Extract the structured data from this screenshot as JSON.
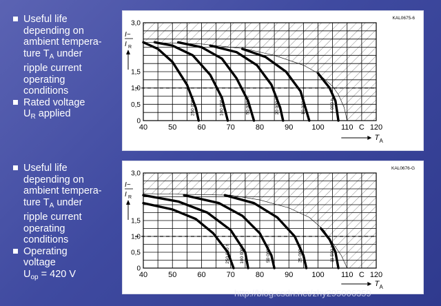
{
  "bullets_top": [
    {
      "lines": [
        "Useful life",
        "depending on",
        "ambient tempera-",
        "ture T",
        "under",
        "ripple current",
        "operating",
        "conditions"
      ]
    },
    {
      "lines": [
        "Rated voltage",
        "U",
        "applied"
      ]
    }
  ],
  "bullets_bottom": [
    {
      "lines": [
        "Useful life",
        "depending on",
        "ambient tempera-",
        "ture T",
        "under",
        "ripple current",
        "operating",
        "conditions"
      ]
    },
    {
      "lines": [
        "Operating",
        "voltage",
        "U",
        "= 420 V"
      ]
    }
  ],
  "subscripts": {
    "A": "A",
    "R": "R",
    "op": "op"
  },
  "watermark": "http://blog.csdn.net/zhy295006359",
  "colors": {
    "background": "#3f4aa0",
    "panel": "#ffffff",
    "curve": "#000000",
    "grid": "#000000"
  },
  "chart_data": [
    {
      "type": "line",
      "code": "KAL0675-6",
      "ylabel_top": "I~",
      "ylabel_bottom": "I",
      "ylabel_sub": "R",
      "xlabel": "T",
      "xlabel_sub": "A",
      "x_unit": "C",
      "xlim": [
        40,
        120
      ],
      "ylim": [
        0,
        3.0
      ],
      "x_ticks": [
        "40",
        "50",
        "60",
        "70",
        "80",
        "90",
        "100",
        "110",
        "",
        "120"
      ],
      "y_ticks": [
        {
          "v": 0,
          "label": "0"
        },
        {
          "v": 0.5,
          "label": "0,5"
        },
        {
          "v": 1.0,
          "label": "1,0"
        },
        {
          "v": 1.5,
          "label": "1,5"
        },
        {
          "v": 3.0,
          "label": "3,0"
        }
      ],
      "grid": true,
      "dashed_y": 1.0,
      "boundary": [
        [
          40,
          2.4
        ],
        [
          60,
          2.35
        ],
        [
          75,
          2.2
        ],
        [
          85,
          2.0
        ],
        [
          95,
          1.7
        ],
        [
          100,
          1.45
        ],
        [
          105,
          1.05
        ],
        [
          107,
          0.8
        ],
        [
          109,
          0.4
        ],
        [
          110,
          0
        ]
      ],
      "series": [
        {
          "name": "250 000 h",
          "points": [
            [
              40,
              2.4
            ],
            [
              45,
              2.2
            ],
            [
              50,
              1.8
            ],
            [
              55,
              1.1
            ],
            [
              58,
              0.4
            ],
            [
              59,
              0
            ]
          ]
        },
        {
          "name": "100 000 h",
          "points": [
            [
              44,
              2.4
            ],
            [
              50,
              2.3
            ],
            [
              57,
              2.0
            ],
            [
              63,
              1.4
            ],
            [
              67,
              0.7
            ],
            [
              69,
              0
            ]
          ]
        },
        {
          "name": "50 000 h",
          "points": [
            [
              52,
              2.4
            ],
            [
              60,
              2.25
            ],
            [
              67,
              1.9
            ],
            [
              72,
              1.3
            ],
            [
              76,
              0.6
            ],
            [
              78,
              0
            ]
          ]
        },
        {
          "name": "20 000 h",
          "points": [
            [
              63,
              2.3
            ],
            [
              72,
              2.1
            ],
            [
              79,
              1.7
            ],
            [
              84,
              1.1
            ],
            [
              87,
              0.4
            ],
            [
              88,
              0
            ]
          ]
        },
        {
          "name": "10 000 h",
          "points": [
            [
              74,
              2.2
            ],
            [
              82,
              1.95
            ],
            [
              89,
              1.5
            ],
            [
              94,
              0.9
            ],
            [
              96,
              0.3
            ],
            [
              97,
              0
            ]
          ]
        },
        {
          "name": "4 000 h",
          "points": [
            [
              100,
              1.45
            ],
            [
              104,
              1.0
            ],
            [
              106,
              0.6
            ],
            [
              107,
              0
            ]
          ]
        }
      ]
    },
    {
      "type": "line",
      "code": "KAL0676-G",
      "ylabel_top": "I~",
      "ylabel_bottom": "I",
      "ylabel_sub": "R",
      "xlabel": "T",
      "xlabel_sub": "A",
      "x_unit": "C",
      "xlim": [
        40,
        120
      ],
      "ylim": [
        0,
        3.0
      ],
      "x_ticks": [
        "40",
        "50",
        "60",
        "70",
        "80",
        "90",
        "100",
        "110",
        "",
        "120"
      ],
      "y_ticks": [
        {
          "v": 0,
          "label": "0"
        },
        {
          "v": 0.5,
          "label": "0,5"
        },
        {
          "v": 1.0,
          "label": "1,0"
        },
        {
          "v": 1.5,
          "label": "1,5"
        },
        {
          "v": 3.0,
          "label": "3,0"
        }
      ],
      "grid": true,
      "dashed_y": 1.0,
      "boundary": [
        [
          40,
          2.35
        ],
        [
          70,
          2.3
        ],
        [
          80,
          2.15
        ],
        [
          90,
          1.9
        ],
        [
          97,
          1.6
        ],
        [
          102,
          1.2
        ],
        [
          105,
          0.8
        ],
        [
          108,
          0.4
        ],
        [
          110,
          0
        ]
      ],
      "series": [
        {
          "name": "250 000 h",
          "points": [
            [
              40,
              2.05
            ],
            [
              50,
              1.85
            ],
            [
              58,
              1.55
            ],
            [
              64,
              1.1
            ],
            [
              69,
              0.5
            ],
            [
              71,
              0
            ]
          ]
        },
        {
          "name": "100 000 h",
          "points": [
            [
              40,
              2.3
            ],
            [
              52,
              2.1
            ],
            [
              62,
              1.75
            ],
            [
              70,
              1.2
            ],
            [
              75,
              0.5
            ],
            [
              76,
              0
            ]
          ]
        },
        {
          "name": "50 000 h",
          "points": [
            [
              54,
              2.3
            ],
            [
              66,
              2.05
            ],
            [
              74,
              1.65
            ],
            [
              80,
              1.1
            ],
            [
              84,
              0.4
            ],
            [
              85,
              0
            ]
          ]
        },
        {
          "name": "25 000 h",
          "points": [
            [
              68,
              2.3
            ],
            [
              78,
              2.05
            ],
            [
              86,
              1.6
            ],
            [
              92,
              1.0
            ],
            [
              95,
              0.4
            ],
            [
              96,
              0
            ]
          ]
        },
        {
          "name": "11 500 h",
          "points": [
            [
              101,
              1.25
            ],
            [
              104,
              0.9
            ],
            [
              106,
              0.5
            ],
            [
              107,
              0
            ]
          ]
        }
      ]
    }
  ]
}
